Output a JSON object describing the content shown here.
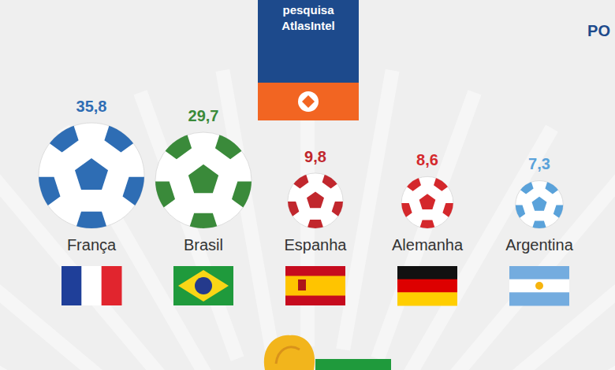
{
  "chart_data": {
    "type": "bubble",
    "title": "pesquisa AtlasIntel",
    "categories": [
      "França",
      "Brasil",
      "Espanha",
      "Alemanha",
      "Argentina"
    ],
    "values": [
      35.8,
      29.7,
      9.8,
      8.6,
      7.3
    ],
    "value_labels": [
      "35,8",
      "29,7",
      "9,8",
      "8,6",
      "7,3"
    ],
    "colors": [
      "#2e6db4",
      "#3a8a3a",
      "#c1272d",
      "#d4282c",
      "#5aa2da"
    ],
    "data_labels": true,
    "tick_labels": false,
    "annotations": [
      "PO"
    ]
  }
}
